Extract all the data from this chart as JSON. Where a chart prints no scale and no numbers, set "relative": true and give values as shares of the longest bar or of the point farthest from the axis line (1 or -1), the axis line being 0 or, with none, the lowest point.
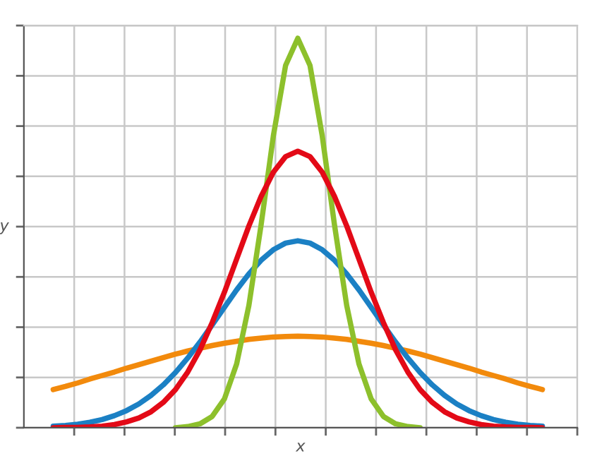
{
  "chart_data": {
    "type": "line",
    "xlabel": "x",
    "ylabel": "y",
    "relative": true,
    "grid": true,
    "marker": "none",
    "line_style": "solid",
    "categories": [
      null,
      null,
      null,
      null,
      null,
      null,
      null,
      null,
      null,
      null,
      null,
      null,
      null,
      null,
      null,
      null,
      null,
      null,
      null,
      null,
      null,
      null,
      null,
      null,
      null,
      null,
      null,
      null,
      null,
      null,
      null,
      null,
      null,
      null,
      null,
      null,
      null,
      null,
      null,
      null,
      null
    ],
    "series": [
      {
        "color": "#f28a0c",
        "values": [
          0.098,
          0.106,
          0.115,
          0.125,
          0.134,
          0.143,
          0.153,
          0.162,
          0.171,
          0.18,
          0.189,
          0.197,
          0.204,
          0.211,
          0.217,
          0.222,
          0.227,
          0.23,
          0.233,
          0.234,
          0.235,
          0.234,
          0.233,
          0.23,
          0.227,
          0.222,
          0.217,
          0.211,
          0.204,
          0.197,
          0.189,
          0.18,
          0.171,
          0.162,
          0.153,
          0.143,
          0.134,
          0.125,
          0.115,
          0.106,
          0.098
        ]
      },
      {
        "color": "#1b80c4",
        "values": [
          0.004,
          0.006,
          0.009,
          0.014,
          0.021,
          0.031,
          0.044,
          0.061,
          0.083,
          0.11,
          0.142,
          0.179,
          0.22,
          0.264,
          0.309,
          0.354,
          0.395,
          0.43,
          0.457,
          0.474,
          0.48,
          0.474,
          0.457,
          0.43,
          0.395,
          0.354,
          0.309,
          0.264,
          0.22,
          0.179,
          0.142,
          0.11,
          0.083,
          0.061,
          0.044,
          0.031,
          0.021,
          0.014,
          0.009,
          0.006,
          0.004
        ]
      },
      {
        "color": "#8dc02c",
        "values": [
          null,
          null,
          null,
          null,
          null,
          null,
          null,
          null,
          null,
          null,
          0,
          0.003,
          0.01,
          0.029,
          0.074,
          0.164,
          0.314,
          0.521,
          0.749,
          0.93,
          1,
          0.93,
          0.749,
          0.521,
          0.314,
          0.164,
          0.074,
          0.029,
          0.01,
          0.003,
          0,
          null,
          null,
          null,
          null,
          null,
          null,
          null,
          null,
          null,
          null
        ]
      },
      {
        "color": "#e30a17",
        "values": [
          0.0,
          0.001,
          0.001,
          0.002,
          0.004,
          0.008,
          0.015,
          0.025,
          0.041,
          0.065,
          0.098,
          0.143,
          0.2,
          0.27,
          0.348,
          0.433,
          0.518,
          0.594,
          0.656,
          0.696,
          0.71,
          0.696,
          0.656,
          0.594,
          0.518,
          0.433,
          0.348,
          0.27,
          0.2,
          0.143,
          0.098,
          0.065,
          0.041,
          0.025,
          0.015,
          0.008,
          0.004,
          0.002,
          0.001,
          0.001,
          0.0
        ]
      }
    ]
  }
}
